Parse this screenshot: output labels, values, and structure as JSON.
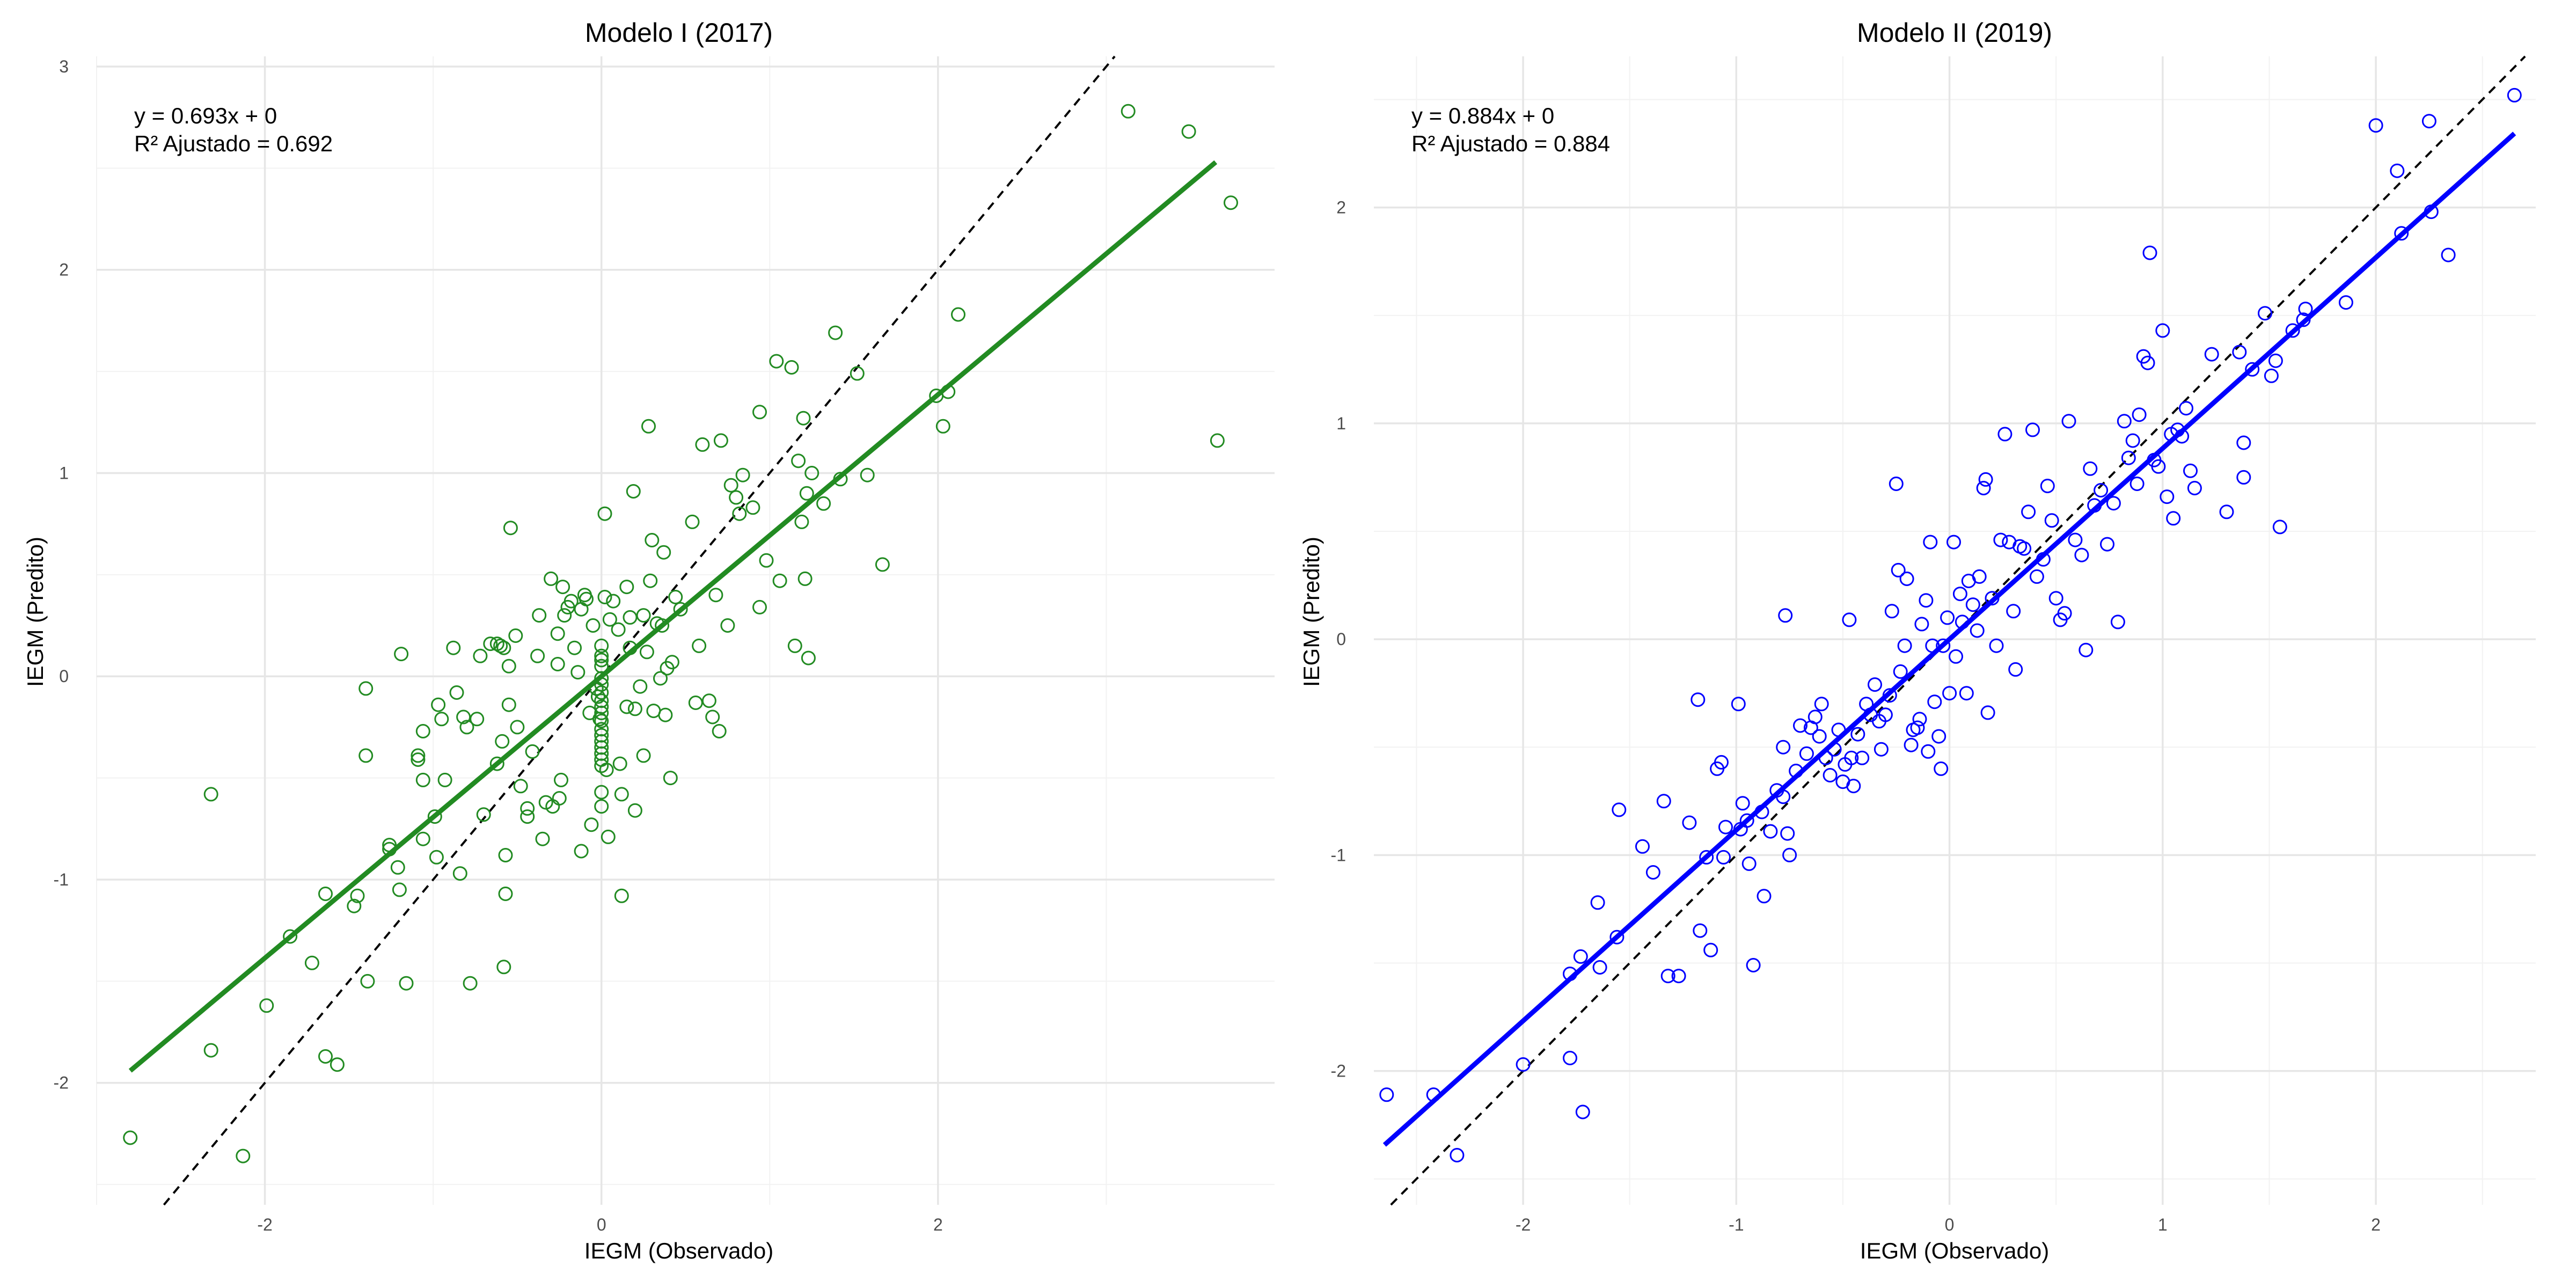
{
  "chart_data": [
    {
      "type": "scatter",
      "title": "Modelo I (2017)",
      "xlabel": "IEGM (Observado)",
      "ylabel": "IEGM (Predito)",
      "xlim": [
        -3.0,
        4.0
      ],
      "ylim": [
        -2.6,
        3.05
      ],
      "xticks": [
        -2,
        0,
        2
      ],
      "yticks": [
        -2,
        -1,
        0,
        1,
        2,
        3
      ],
      "grid": true,
      "annotation": [
        "y = 0.693x + 0",
        "R² Ajustado = 0.692"
      ],
      "color": "#228B22",
      "regression": {
        "slope": 0.693,
        "intercept": 0,
        "x_range": [
          -2.8,
          3.65
        ]
      },
      "identity_line": true,
      "points": [
        [
          -2.8,
          -2.27
        ],
        [
          -2.32,
          -0.58
        ],
        [
          -2.32,
          -1.84
        ],
        [
          -2.13,
          -2.36
        ],
        [
          -1.99,
          -1.62
        ],
        [
          -1.85,
          -1.28
        ],
        [
          -1.72,
          -1.41
        ],
        [
          -1.64,
          -1.07
        ],
        [
          -1.64,
          -1.87
        ],
        [
          -1.57,
          -1.91
        ],
        [
          -1.47,
          -1.13
        ],
        [
          -1.45,
          -1.08
        ],
        [
          -1.4,
          -0.06
        ],
        [
          -1.4,
          -0.39
        ],
        [
          -1.39,
          -1.5
        ],
        [
          -1.26,
          -0.83
        ],
        [
          -1.26,
          -0.85
        ],
        [
          -1.21,
          -0.94
        ],
        [
          -1.2,
          -1.05
        ],
        [
          -1.19,
          0.11
        ],
        [
          -1.16,
          -1.51
        ],
        [
          -1.09,
          -0.39
        ],
        [
          -1.09,
          -0.41
        ],
        [
          -1.06,
          -0.27
        ],
        [
          -1.06,
          -0.51
        ],
        [
          -1.06,
          -0.8
        ],
        [
          -0.99,
          -0.69
        ],
        [
          -0.98,
          -0.89
        ],
        [
          -0.97,
          -0.14
        ],
        [
          -0.95,
          -0.21
        ],
        [
          -0.93,
          -0.51
        ],
        [
          -0.88,
          0.14
        ],
        [
          -0.86,
          -0.08
        ],
        [
          -0.84,
          -0.97
        ],
        [
          -0.82,
          -0.2
        ],
        [
          -0.8,
          -0.25
        ],
        [
          -0.78,
          -1.51
        ],
        [
          -0.74,
          -0.21
        ],
        [
          -0.72,
          0.1
        ],
        [
          -0.7,
          -0.68
        ],
        [
          -0.66,
          0.16
        ],
        [
          -0.62,
          0.16
        ],
        [
          -0.62,
          -0.43
        ],
        [
          -0.6,
          0.15
        ],
        [
          -0.58,
          0.14
        ],
        [
          -0.59,
          -0.32
        ],
        [
          -0.58,
          -1.43
        ],
        [
          -0.57,
          -1.07
        ],
        [
          -0.57,
          -0.88
        ],
        [
          -0.55,
          -0.14
        ],
        [
          -0.55,
          0.05
        ],
        [
          -0.54,
          0.73
        ],
        [
          -0.51,
          0.2
        ],
        [
          -0.5,
          -0.25
        ],
        [
          -0.48,
          -0.54
        ],
        [
          -0.44,
          -0.69
        ],
        [
          -0.44,
          -0.65
        ],
        [
          -0.41,
          -0.37
        ],
        [
          -0.38,
          0.1
        ],
        [
          -0.37,
          0.3
        ],
        [
          -0.35,
          -0.8
        ],
        [
          -0.33,
          -0.62
        ],
        [
          -0.3,
          0.48
        ],
        [
          -0.29,
          -0.64
        ],
        [
          -0.26,
          0.21
        ],
        [
          -0.26,
          0.06
        ],
        [
          -0.25,
          -0.6
        ],
        [
          -0.24,
          -0.51
        ],
        [
          -0.23,
          0.44
        ],
        [
          -0.22,
          0.3
        ],
        [
          -0.2,
          0.34
        ],
        [
          -0.18,
          0.37
        ],
        [
          -0.16,
          0.14
        ],
        [
          -0.14,
          0.02
        ],
        [
          -0.12,
          -0.86
        ],
        [
          -0.12,
          0.33
        ],
        [
          -0.1,
          0.4
        ],
        [
          -0.09,
          0.38
        ],
        [
          -0.07,
          -0.18
        ],
        [
          -0.06,
          -0.73
        ],
        [
          -0.05,
          0.25
        ],
        [
          -0.03,
          -0.06
        ],
        [
          -0.02,
          -0.1
        ],
        [
          -0.01,
          -0.21
        ],
        [
          0.0,
          0.05
        ],
        [
          0.0,
          0.08
        ],
        [
          0.0,
          0.1
        ],
        [
          0.0,
          0.15
        ],
        [
          0.0,
          -0.01
        ],
        [
          0.0,
          -0.04
        ],
        [
          0.0,
          -0.08
        ],
        [
          0.0,
          -0.12
        ],
        [
          0.0,
          -0.15
        ],
        [
          0.0,
          -0.18
        ],
        [
          0.0,
          -0.22
        ],
        [
          0.0,
          -0.26
        ],
        [
          0.0,
          -0.29
        ],
        [
          0.0,
          -0.32
        ],
        [
          0.0,
          -0.35
        ],
        [
          0.0,
          -0.38
        ],
        [
          0.0,
          -0.41
        ],
        [
          0.0,
          -0.44
        ],
        [
          0.0,
          -0.57
        ],
        [
          0.0,
          -0.64
        ],
        [
          0.02,
          0.8
        ],
        [
          0.02,
          0.39
        ],
        [
          0.03,
          -0.46
        ],
        [
          0.04,
          -0.79
        ],
        [
          0.05,
          0.28
        ],
        [
          0.07,
          0.37
        ],
        [
          0.1,
          0.23
        ],
        [
          0.11,
          -0.43
        ],
        [
          0.12,
          -0.58
        ],
        [
          0.12,
          -1.08
        ],
        [
          0.15,
          -0.15
        ],
        [
          0.15,
          0.44
        ],
        [
          0.17,
          0.14
        ],
        [
          0.17,
          0.29
        ],
        [
          0.19,
          0.91
        ],
        [
          0.2,
          -0.66
        ],
        [
          0.2,
          -0.16
        ],
        [
          0.23,
          -0.05
        ],
        [
          0.25,
          -0.39
        ],
        [
          0.25,
          0.3
        ],
        [
          0.27,
          0.12
        ],
        [
          0.28,
          1.23
        ],
        [
          0.29,
          0.47
        ],
        [
          0.3,
          0.67
        ],
        [
          0.31,
          -0.17
        ],
        [
          0.33,
          0.26
        ],
        [
          0.35,
          -0.01
        ],
        [
          0.36,
          0.25
        ],
        [
          0.37,
          0.61
        ],
        [
          0.38,
          -0.19
        ],
        [
          0.39,
          0.04
        ],
        [
          0.41,
          -0.5
        ],
        [
          0.42,
          0.07
        ],
        [
          0.44,
          0.39
        ],
        [
          0.47,
          0.33
        ],
        [
          0.54,
          0.76
        ],
        [
          0.56,
          -0.13
        ],
        [
          0.58,
          0.15
        ],
        [
          0.6,
          1.14
        ],
        [
          0.64,
          -0.12
        ],
        [
          0.66,
          -0.2
        ],
        [
          0.68,
          0.4
        ],
        [
          0.7,
          -0.27
        ],
        [
          0.71,
          1.16
        ],
        [
          0.75,
          0.25
        ],
        [
          0.77,
          0.94
        ],
        [
          0.8,
          0.88
        ],
        [
          0.82,
          0.8
        ],
        [
          0.84,
          0.99
        ],
        [
          0.9,
          0.83
        ],
        [
          0.94,
          0.34
        ],
        [
          0.94,
          1.3
        ],
        [
          0.98,
          0.57
        ],
        [
          1.04,
          1.55
        ],
        [
          1.06,
          0.47
        ],
        [
          1.13,
          1.52
        ],
        [
          1.15,
          0.15
        ],
        [
          1.17,
          1.06
        ],
        [
          1.19,
          0.76
        ],
        [
          1.2,
          1.27
        ],
        [
          1.21,
          0.48
        ],
        [
          1.22,
          0.9
        ],
        [
          1.23,
          0.09
        ],
        [
          1.25,
          1.0
        ],
        [
          1.32,
          0.85
        ],
        [
          1.39,
          1.69
        ],
        [
          1.42,
          0.97
        ],
        [
          1.52,
          1.49
        ],
        [
          1.58,
          0.99
        ],
        [
          1.67,
          0.55
        ],
        [
          1.99,
          1.38
        ],
        [
          2.03,
          1.23
        ],
        [
          2.06,
          1.4
        ],
        [
          2.12,
          1.78
        ],
        [
          3.13,
          2.78
        ],
        [
          3.49,
          2.68
        ],
        [
          3.66,
          1.16
        ],
        [
          3.74,
          2.33
        ]
      ]
    },
    {
      "type": "scatter",
      "title": "Modelo II (2019)",
      "xlabel": "IEGM (Observado)",
      "ylabel": "IEGM (Predito)",
      "xlim": [
        -2.7,
        2.75
      ],
      "ylim": [
        -2.62,
        2.7
      ],
      "xticks": [
        -2,
        -1,
        0,
        1,
        2
      ],
      "yticks": [
        -2,
        -1,
        0,
        1,
        2
      ],
      "grid": true,
      "annotation": [
        "y = 0.884x + 0",
        "R² Ajustado = 0.884"
      ],
      "color": "#0000FF",
      "regression": {
        "slope": 0.884,
        "intercept": 0,
        "x_range": [
          -2.65,
          2.65
        ]
      },
      "identity_line": true,
      "points": [
        [
          -2.64,
          -2.11
        ],
        [
          -2.42,
          -2.11
        ],
        [
          -2.31,
          -2.39
        ],
        [
          -2.0,
          -1.97
        ],
        [
          -1.78,
          -1.94
        ],
        [
          -1.78,
          -1.55
        ],
        [
          -1.73,
          -1.47
        ],
        [
          -1.72,
          -2.19
        ],
        [
          -1.65,
          -1.22
        ],
        [
          -1.64,
          -1.52
        ],
        [
          -1.56,
          -1.38
        ],
        [
          -1.55,
          -0.79
        ],
        [
          -1.44,
          -0.96
        ],
        [
          -1.39,
          -1.08
        ],
        [
          -1.34,
          -0.75
        ],
        [
          -1.32,
          -1.56
        ],
        [
          -1.27,
          -1.56
        ],
        [
          -1.22,
          -0.85
        ],
        [
          -1.18,
          -0.28
        ],
        [
          -1.17,
          -1.35
        ],
        [
          -1.14,
          -1.01
        ],
        [
          -1.12,
          -1.44
        ],
        [
          -1.09,
          -0.6
        ],
        [
          -1.07,
          -0.57
        ],
        [
          -1.06,
          -1.01
        ],
        [
          -1.05,
          -0.87
        ],
        [
          -0.99,
          -0.3
        ],
        [
          -0.98,
          -0.88
        ],
        [
          -0.97,
          -0.76
        ],
        [
          -0.95,
          -0.84
        ],
        [
          -0.94,
          -1.04
        ],
        [
          -0.92,
          -1.51
        ],
        [
          -0.88,
          -0.8
        ],
        [
          -0.87,
          -1.19
        ],
        [
          -0.84,
          -0.89
        ],
        [
          -0.81,
          -0.7
        ],
        [
          -0.78,
          -0.73
        ],
        [
          -0.78,
          -0.5
        ],
        [
          -0.77,
          0.11
        ],
        [
          -0.76,
          -0.9
        ],
        [
          -0.75,
          -1.0
        ],
        [
          -0.72,
          -0.61
        ],
        [
          -0.7,
          -0.4
        ],
        [
          -0.67,
          -0.53
        ],
        [
          -0.65,
          -0.41
        ],
        [
          -0.63,
          -0.36
        ],
        [
          -0.61,
          -0.45
        ],
        [
          -0.6,
          -0.3
        ],
        [
          -0.58,
          -0.55
        ],
        [
          -0.56,
          -0.63
        ],
        [
          -0.54,
          -0.51
        ],
        [
          -0.52,
          -0.42
        ],
        [
          -0.5,
          -0.66
        ],
        [
          -0.49,
          -0.58
        ],
        [
          -0.47,
          0.09
        ],
        [
          -0.46,
          -0.55
        ],
        [
          -0.45,
          -0.68
        ],
        [
          -0.43,
          -0.44
        ],
        [
          -0.41,
          -0.55
        ],
        [
          -0.39,
          -0.3
        ],
        [
          -0.37,
          -0.35
        ],
        [
          -0.35,
          -0.21
        ],
        [
          -0.33,
          -0.38
        ],
        [
          -0.32,
          -0.51
        ],
        [
          -0.3,
          -0.35
        ],
        [
          -0.28,
          -0.26
        ],
        [
          -0.27,
          0.13
        ],
        [
          -0.25,
          0.72
        ],
        [
          -0.24,
          0.32
        ],
        [
          -0.23,
          -0.15
        ],
        [
          -0.21,
          -0.03
        ],
        [
          -0.2,
          0.28
        ],
        [
          -0.18,
          -0.49
        ],
        [
          -0.17,
          -0.42
        ],
        [
          -0.15,
          -0.41
        ],
        [
          -0.14,
          -0.37
        ],
        [
          -0.13,
          0.07
        ],
        [
          -0.11,
          0.18
        ],
        [
          -0.1,
          -0.52
        ],
        [
          -0.09,
          0.45
        ],
        [
          -0.08,
          -0.03
        ],
        [
          -0.07,
          -0.29
        ],
        [
          -0.05,
          -0.45
        ],
        [
          -0.04,
          -0.6
        ],
        [
          -0.03,
          -0.03
        ],
        [
          -0.01,
          0.1
        ],
        [
          0.0,
          -0.25
        ],
        [
          0.02,
          0.45
        ],
        [
          0.03,
          -0.08
        ],
        [
          0.05,
          0.21
        ],
        [
          0.06,
          0.08
        ],
        [
          0.08,
          -0.25
        ],
        [
          0.09,
          0.27
        ],
        [
          0.11,
          0.16
        ],
        [
          0.13,
          0.04
        ],
        [
          0.14,
          0.29
        ],
        [
          0.16,
          0.7
        ],
        [
          0.17,
          0.74
        ],
        [
          0.18,
          -0.34
        ],
        [
          0.2,
          0.19
        ],
        [
          0.22,
          -0.03
        ],
        [
          0.24,
          0.46
        ],
        [
          0.26,
          0.95
        ],
        [
          0.28,
          0.45
        ],
        [
          0.3,
          0.13
        ],
        [
          0.31,
          -0.14
        ],
        [
          0.33,
          0.43
        ],
        [
          0.35,
          0.42
        ],
        [
          0.37,
          0.59
        ],
        [
          0.39,
          0.97
        ],
        [
          0.41,
          0.29
        ],
        [
          0.44,
          0.37
        ],
        [
          0.46,
          0.71
        ],
        [
          0.48,
          0.55
        ],
        [
          0.5,
          0.19
        ],
        [
          0.52,
          0.09
        ],
        [
          0.54,
          0.12
        ],
        [
          0.56,
          1.01
        ],
        [
          0.59,
          0.46
        ],
        [
          0.62,
          0.39
        ],
        [
          0.64,
          -0.05
        ],
        [
          0.66,
          0.79
        ],
        [
          0.68,
          0.62
        ],
        [
          0.71,
          0.69
        ],
        [
          0.74,
          0.44
        ],
        [
          0.77,
          0.63
        ],
        [
          0.79,
          0.08
        ],
        [
          0.82,
          1.01
        ],
        [
          0.84,
          0.84
        ],
        [
          0.86,
          0.92
        ],
        [
          0.88,
          0.72
        ],
        [
          0.89,
          1.04
        ],
        [
          0.91,
          1.31
        ],
        [
          0.93,
          1.28
        ],
        [
          0.94,
          1.79
        ],
        [
          0.96,
          0.83
        ],
        [
          0.98,
          0.8
        ],
        [
          1.0,
          1.43
        ],
        [
          1.02,
          0.66
        ],
        [
          1.04,
          0.95
        ],
        [
          1.05,
          0.56
        ],
        [
          1.07,
          0.97
        ],
        [
          1.09,
          0.94
        ],
        [
          1.11,
          1.07
        ],
        [
          1.13,
          0.78
        ],
        [
          1.15,
          0.7
        ],
        [
          1.23,
          1.32
        ],
        [
          1.3,
          0.59
        ],
        [
          1.36,
          1.33
        ],
        [
          1.38,
          0.91
        ],
        [
          1.38,
          0.75
        ],
        [
          1.42,
          1.25
        ],
        [
          1.48,
          1.51
        ],
        [
          1.51,
          1.22
        ],
        [
          1.53,
          1.29
        ],
        [
          1.55,
          0.52
        ],
        [
          1.61,
          1.43
        ],
        [
          1.66,
          1.48
        ],
        [
          1.67,
          1.53
        ],
        [
          1.86,
          1.56
        ],
        [
          2.0,
          2.38
        ],
        [
          2.1,
          2.17
        ],
        [
          2.12,
          1.88
        ],
        [
          2.25,
          2.4
        ],
        [
          2.26,
          1.98
        ],
        [
          2.34,
          1.78
        ],
        [
          2.65,
          2.52
        ]
      ]
    }
  ]
}
